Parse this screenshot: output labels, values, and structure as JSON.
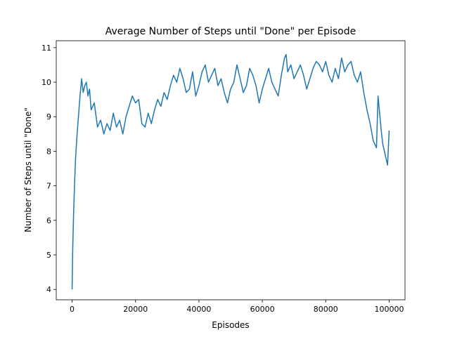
{
  "chart_data": {
    "type": "line",
    "title": "Average Number of Steps until \"Done\" per Episode",
    "xlabel": "Episodes",
    "ylabel": "Number of Steps until \"Done\"",
    "xlim": [
      -5000,
      105000
    ],
    "ylim": [
      3.7,
      11.2
    ],
    "xticks": [
      0,
      20000,
      40000,
      60000,
      80000,
      100000
    ],
    "xtick_labels": [
      "0",
      "20000",
      "40000",
      "60000",
      "80000",
      "100000"
    ],
    "yticks": [
      4,
      5,
      6,
      7,
      8,
      9,
      10,
      11
    ],
    "ytick_labels": [
      "4",
      "5",
      "6",
      "7",
      "8",
      "9",
      "10",
      "11"
    ],
    "grid": false,
    "series": [
      {
        "color": "#1f77b4",
        "x": [
          0,
          200,
          500,
          800,
          1100,
          1500,
          2000,
          2500,
          3000,
          3500,
          4000,
          4500,
          5000,
          5500,
          6000,
          7000,
          8000,
          9000,
          10000,
          11000,
          12000,
          13000,
          14000,
          15000,
          16000,
          17000,
          18000,
          19000,
          20000,
          21000,
          22000,
          23000,
          24000,
          25000,
          26000,
          27000,
          28000,
          29000,
          30000,
          31000,
          32000,
          33000,
          34000,
          35000,
          36000,
          37000,
          38000,
          39000,
          40000,
          41000,
          42000,
          43000,
          44000,
          45000,
          46000,
          47000,
          48000,
          49000,
          50000,
          51000,
          52000,
          53000,
          54000,
          55000,
          56000,
          57000,
          58000,
          59000,
          60000,
          61000,
          62000,
          63000,
          64000,
          65000,
          66000,
          67000,
          67500,
          68000,
          69000,
          70000,
          71000,
          72000,
          73000,
          74000,
          75000,
          76000,
          77000,
          78000,
          79000,
          80000,
          81000,
          82000,
          83000,
          84000,
          85000,
          86000,
          87000,
          88000,
          89000,
          90000,
          91000,
          92000,
          93000,
          94000,
          95000,
          96000,
          96500,
          97000,
          97500,
          98000,
          99000,
          99500,
          100000
        ],
        "y": [
          4.0,
          5.2,
          6.3,
          7.1,
          7.8,
          8.4,
          9.0,
          9.6,
          10.1,
          9.7,
          9.9,
          10.0,
          9.6,
          9.8,
          9.2,
          9.4,
          8.7,
          8.9,
          8.5,
          8.8,
          8.6,
          9.1,
          8.7,
          8.9,
          8.5,
          9.0,
          9.3,
          9.6,
          9.4,
          9.5,
          8.8,
          8.7,
          9.1,
          8.8,
          9.2,
          9.5,
          9.3,
          9.7,
          9.5,
          9.9,
          10.2,
          10.0,
          10.4,
          10.1,
          9.7,
          9.8,
          10.3,
          9.6,
          9.9,
          10.3,
          10.5,
          10.0,
          10.2,
          10.4,
          9.9,
          10.1,
          9.7,
          9.4,
          9.8,
          10.0,
          10.5,
          10.1,
          9.7,
          9.9,
          10.4,
          10.2,
          9.9,
          9.4,
          9.8,
          10.1,
          10.4,
          10.0,
          9.8,
          9.6,
          10.2,
          10.7,
          10.8,
          10.3,
          10.5,
          10.1,
          10.3,
          10.5,
          10.2,
          9.8,
          10.1,
          10.4,
          10.6,
          10.5,
          10.3,
          10.6,
          10.2,
          10.0,
          10.4,
          10.1,
          10.7,
          10.3,
          10.5,
          10.6,
          10.2,
          10.0,
          10.3,
          9.7,
          9.2,
          8.8,
          8.3,
          8.1,
          9.6,
          9.1,
          8.6,
          8.2,
          7.8,
          7.6,
          8.6
        ]
      }
    ]
  }
}
